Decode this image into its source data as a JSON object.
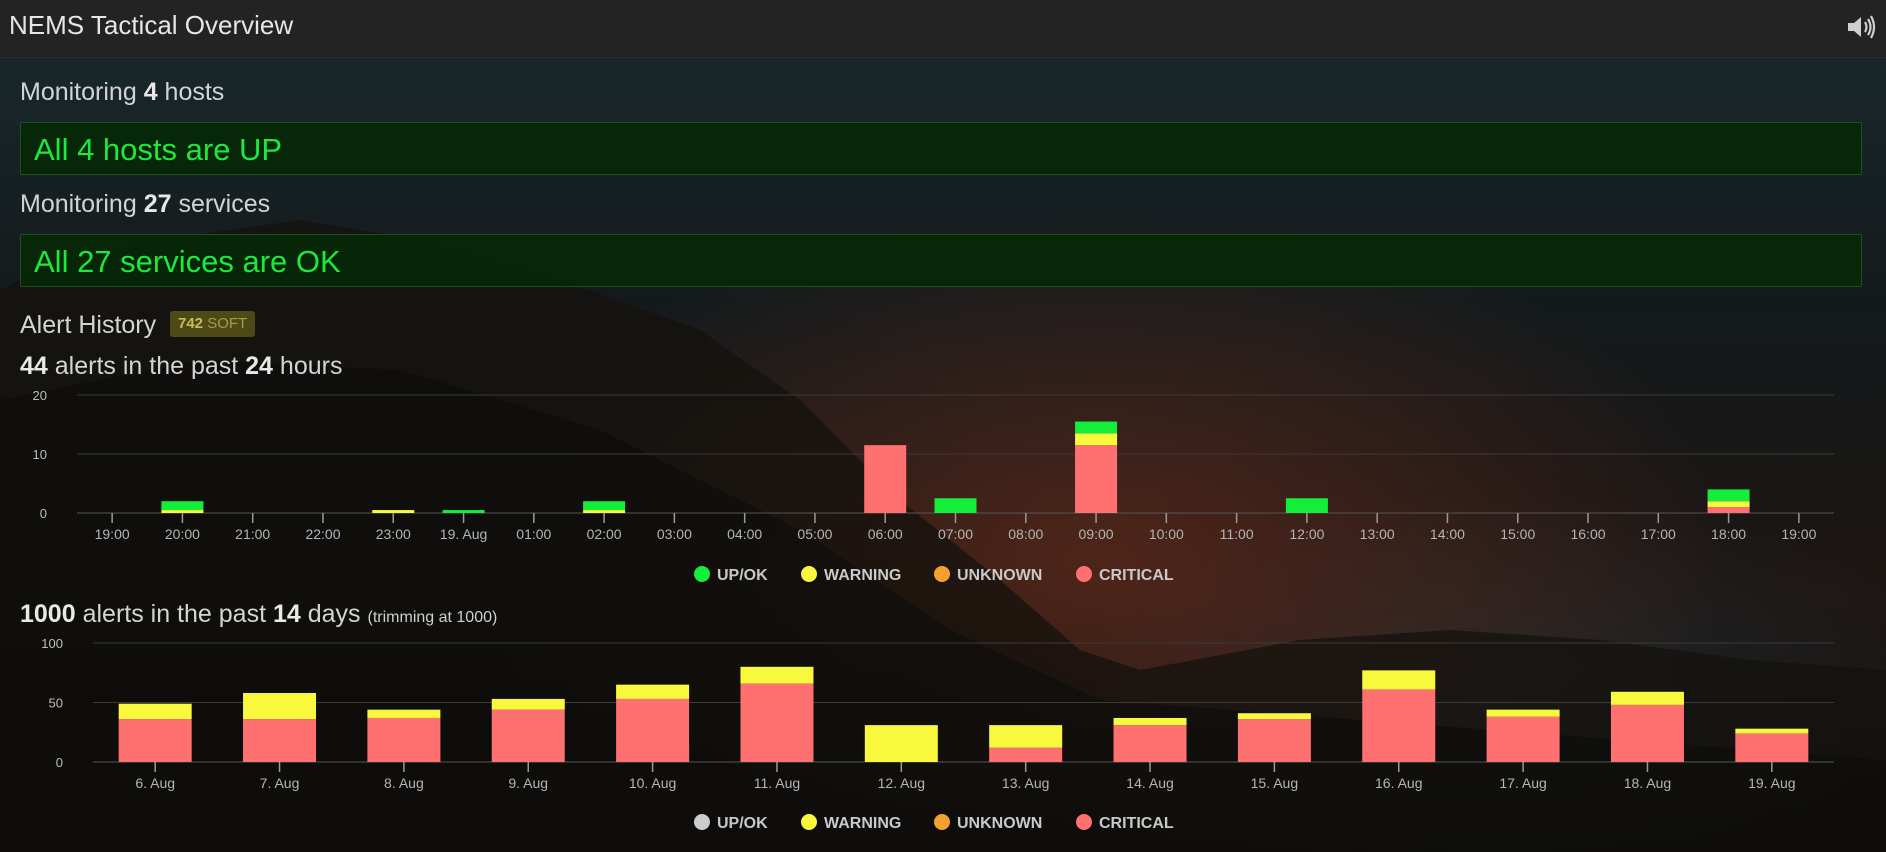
{
  "header": {
    "title": "NEMS Tactical Overview",
    "sound_icon": "speaker-volume-icon"
  },
  "hosts": {
    "label_pre": "Monitoring",
    "count": "4",
    "label_post": "hosts",
    "status": "All 4 hosts are UP"
  },
  "services": {
    "label_pre": "Monitoring",
    "count": "27",
    "label_post": "services",
    "status": "All 27 services are OK"
  },
  "alert_history": {
    "title": "Alert History",
    "badge_count": "742",
    "badge_label": "SOFT"
  },
  "day_summary": {
    "count": "44",
    "mid": "alerts in the past",
    "period": "24",
    "unit": "hours"
  },
  "week_summary": {
    "count": "1000",
    "mid": "alerts in the past",
    "period": "14",
    "unit": "days",
    "note": "(trimming at 1000)"
  },
  "colors": {
    "up": "#12ee3a",
    "warning": "#f8f83c",
    "unknown": "#f5a030",
    "critical": "#ff7070",
    "up_inactive": "#cccccc"
  },
  "chart_data": [
    {
      "type": "bar",
      "stacked": true,
      "categories": [
        "19:00",
        "20:00",
        "21:00",
        "22:00",
        "23:00",
        "19. Aug",
        "01:00",
        "02:00",
        "03:00",
        "04:00",
        "05:00",
        "06:00",
        "07:00",
        "08:00",
        "09:00",
        "10:00",
        "11:00",
        "12:00",
        "13:00",
        "14:00",
        "15:00",
        "16:00",
        "17:00",
        "18:00",
        "19:00"
      ],
      "series": [
        {
          "name": "UP/OK",
          "values": [
            0,
            1.5,
            0,
            0,
            0,
            0.5,
            0,
            1.5,
            0,
            0,
            0,
            0,
            2.5,
            0,
            2,
            0,
            0,
            2.5,
            0,
            0,
            0,
            0,
            0,
            2,
            0
          ]
        },
        {
          "name": "WARNING",
          "values": [
            0,
            0.5,
            0,
            0,
            0.5,
            0,
            0,
            0.5,
            0,
            0,
            0,
            0,
            0,
            0,
            2,
            0,
            0,
            0,
            0,
            0,
            0,
            0,
            0,
            1,
            0
          ]
        },
        {
          "name": "UNKNOWN",
          "values": [
            0,
            0,
            0,
            0,
            0,
            0,
            0,
            0,
            0,
            0,
            0,
            0,
            0,
            0,
            0,
            0,
            0,
            0,
            0,
            0,
            0,
            0,
            0,
            0,
            0
          ]
        },
        {
          "name": "CRITICAL",
          "values": [
            0,
            0,
            0,
            0,
            0,
            0,
            0,
            0,
            0,
            0,
            0,
            11.5,
            0,
            0,
            11.5,
            0,
            0,
            0,
            0,
            0,
            0,
            0,
            0,
            1,
            0
          ]
        }
      ],
      "ylim": [
        0,
        20
      ],
      "yticks": [
        0,
        10,
        20
      ],
      "legend_position": "bottom",
      "grid": true
    },
    {
      "type": "bar",
      "stacked": true,
      "categories": [
        "6. Aug",
        "7. Aug",
        "8. Aug",
        "9. Aug",
        "10. Aug",
        "11. Aug",
        "12. Aug",
        "13. Aug",
        "14. Aug",
        "15. Aug",
        "16. Aug",
        "17. Aug",
        "18. Aug",
        "19. Aug"
      ],
      "series": [
        {
          "name": "UP/OK",
          "values": [
            0,
            0,
            0,
            0,
            0,
            0,
            0,
            0,
            0,
            0,
            0,
            0,
            0,
            0
          ]
        },
        {
          "name": "WARNING",
          "values": [
            13,
            22,
            7,
            9,
            12,
            14,
            31,
            19,
            6,
            5,
            16,
            6,
            11,
            4
          ]
        },
        {
          "name": "UNKNOWN",
          "values": [
            0,
            0,
            0,
            0,
            0,
            0,
            0,
            0,
            0,
            0,
            0,
            0,
            0,
            0
          ]
        },
        {
          "name": "CRITICAL",
          "values": [
            36,
            36,
            37,
            44,
            53,
            66,
            0,
            12,
            31,
            36,
            61,
            38,
            48,
            24
          ]
        }
      ],
      "ylim": [
        0,
        100
      ],
      "yticks": [
        0,
        50,
        100
      ],
      "legend_position": "bottom",
      "grid": true
    }
  ]
}
